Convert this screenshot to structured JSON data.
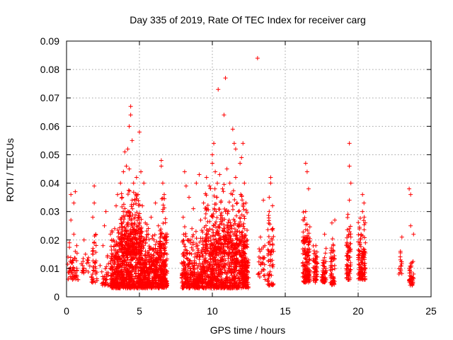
{
  "chart_data": {
    "type": "scatter",
    "title": "Day 335 of 2019, Rate Of TEC Index for receiver carg",
    "xlabel": "GPS time / hours",
    "ylabel": "ROTI / TECUs",
    "xlim": [
      0,
      25
    ],
    "ylim": [
      0,
      0.09
    ],
    "xticks": [
      0,
      5,
      10,
      15,
      20,
      25
    ],
    "xtick_labels": [
      "0",
      "5",
      "10",
      "15",
      "20",
      "25"
    ],
    "yticks": [
      0,
      0.01,
      0.02,
      0.03,
      0.04,
      0.05,
      0.06,
      0.07,
      0.08,
      0.09
    ],
    "ytick_labels": [
      "0",
      "0.01",
      "0.02",
      "0.03",
      "0.04",
      "0.05",
      "0.06",
      "0.07",
      "0.08",
      "0.09"
    ],
    "grid": true,
    "marker": "+",
    "color": "#ff0000",
    "series": [
      {
        "points": [
          [
            0.1,
            0.014
          ],
          [
            0.2,
            0.009
          ],
          [
            0.2,
            0.019
          ],
          [
            0.3,
            0.027
          ],
          [
            0.3,
            0.036
          ],
          [
            0.4,
            0.008
          ],
          [
            0.4,
            0.012
          ],
          [
            0.5,
            0.022
          ],
          [
            0.5,
            0.033
          ],
          [
            0.6,
            0.016
          ],
          [
            0.6,
            0.037
          ],
          [
            0.7,
            0.01
          ],
          [
            0.7,
            0.018
          ],
          [
            1.1,
            0.011
          ],
          [
            1.2,
            0.02
          ],
          [
            1.3,
            0.015
          ],
          [
            1.5,
            0.012
          ],
          [
            1.7,
            0.007
          ],
          [
            1.8,
            0.015
          ],
          [
            1.8,
            0.028
          ],
          [
            1.9,
            0.033
          ],
          [
            1.9,
            0.039
          ],
          [
            2.0,
            0.01
          ],
          [
            2.0,
            0.022
          ],
          [
            2.3,
            0.011
          ],
          [
            2.5,
            0.018
          ],
          [
            2.6,
            0.025
          ],
          [
            2.7,
            0.006
          ],
          [
            2.7,
            0.03
          ],
          [
            2.8,
            0.014
          ],
          [
            3.0,
            0.01
          ],
          [
            3.1,
            0.02
          ],
          [
            3.2,
            0.014
          ],
          [
            3.3,
            0.024
          ],
          [
            3.4,
            0.032
          ],
          [
            3.5,
            0.012
          ],
          [
            3.5,
            0.036
          ],
          [
            3.6,
            0.018
          ],
          [
            3.7,
            0.04
          ],
          [
            3.7,
            0.009
          ],
          [
            3.8,
            0.028
          ],
          [
            3.9,
            0.044
          ],
          [
            3.9,
            0.015
          ],
          [
            4.0,
            0.051
          ],
          [
            4.0,
            0.022
          ],
          [
            4.1,
            0.046
          ],
          [
            4.1,
            0.011
          ],
          [
            4.2,
            0.052
          ],
          [
            4.2,
            0.03
          ],
          [
            4.3,
            0.045
          ],
          [
            4.3,
            0.018
          ],
          [
            4.3,
            0.06
          ],
          [
            4.4,
            0.064
          ],
          [
            4.4,
            0.067
          ],
          [
            4.4,
            0.013
          ],
          [
            4.5,
            0.055
          ],
          [
            4.5,
            0.034
          ],
          [
            4.6,
            0.04
          ],
          [
            4.6,
            0.01
          ],
          [
            4.7,
            0.028
          ],
          [
            4.8,
            0.042
          ],
          [
            4.9,
            0.036
          ],
          [
            4.9,
            0.016
          ],
          [
            5.0,
            0.058
          ],
          [
            5.0,
            0.024
          ],
          [
            5.1,
            0.044
          ],
          [
            5.1,
            0.01
          ],
          [
            5.2,
            0.032
          ],
          [
            5.3,
            0.04
          ],
          [
            5.3,
            0.018
          ],
          [
            5.4,
            0.026
          ],
          [
            5.5,
            0.012
          ],
          [
            5.6,
            0.022
          ],
          [
            5.7,
            0.014
          ],
          [
            5.8,
            0.028
          ],
          [
            5.9,
            0.009
          ],
          [
            6.0,
            0.02
          ],
          [
            6.1,
            0.033
          ],
          [
            6.2,
            0.012
          ],
          [
            6.3,
            0.025
          ],
          [
            6.4,
            0.017
          ],
          [
            6.5,
            0.048
          ],
          [
            6.5,
            0.046
          ],
          [
            6.6,
            0.04
          ],
          [
            6.6,
            0.03
          ],
          [
            6.7,
            0.036
          ],
          [
            6.7,
            0.011
          ],
          [
            6.8,
            0.022
          ],
          [
            7.9,
            0.012
          ],
          [
            8.0,
            0.028
          ],
          [
            8.1,
            0.044
          ],
          [
            8.2,
            0.039
          ],
          [
            8.2,
            0.015
          ],
          [
            8.3,
            0.02
          ],
          [
            8.4,
            0.035
          ],
          [
            8.5,
            0.01
          ],
          [
            8.6,
            0.024
          ],
          [
            8.7,
            0.031
          ],
          [
            8.8,
            0.014
          ],
          [
            8.9,
            0.04
          ],
          [
            9.0,
            0.018
          ],
          [
            9.1,
            0.043
          ],
          [
            9.2,
            0.027
          ],
          [
            9.3,
            0.01
          ],
          [
            9.4,
            0.033
          ],
          [
            9.5,
            0.016
          ],
          [
            9.6,
            0.042
          ],
          [
            9.7,
            0.022
          ],
          [
            9.8,
            0.039
          ],
          [
            9.9,
            0.012
          ],
          [
            10.0,
            0.05
          ],
          [
            10.0,
            0.047
          ],
          [
            10.1,
            0.054
          ],
          [
            10.1,
            0.025
          ],
          [
            10.2,
            0.044
          ],
          [
            10.3,
            0.015
          ],
          [
            10.3,
            0.035
          ],
          [
            10.4,
            0.073
          ],
          [
            10.5,
            0.043
          ],
          [
            10.6,
            0.02
          ],
          [
            10.7,
            0.038
          ],
          [
            10.8,
            0.064
          ],
          [
            10.9,
            0.077
          ],
          [
            10.9,
            0.03
          ],
          [
            11.0,
            0.045
          ],
          [
            11.1,
            0.01
          ],
          [
            11.2,
            0.04
          ],
          [
            11.3,
            0.025
          ],
          [
            11.4,
            0.059
          ],
          [
            11.5,
            0.054
          ],
          [
            11.6,
            0.042
          ],
          [
            11.6,
            0.052
          ],
          [
            11.7,
            0.033
          ],
          [
            11.7,
            0.018
          ],
          [
            11.8,
            0.03
          ],
          [
            11.9,
            0.047
          ],
          [
            12.0,
            0.049
          ],
          [
            12.0,
            0.022
          ],
          [
            12.1,
            0.054
          ],
          [
            12.1,
            0.012
          ],
          [
            12.2,
            0.04
          ],
          [
            12.3,
            0.033
          ],
          [
            12.4,
            0.02
          ],
          [
            13.1,
            0.084
          ],
          [
            13.2,
            0.014
          ],
          [
            13.3,
            0.021
          ],
          [
            13.4,
            0.012
          ],
          [
            13.5,
            0.034
          ],
          [
            13.6,
            0.018
          ],
          [
            13.8,
            0.008
          ],
          [
            13.9,
            0.03
          ],
          [
            13.9,
            0.035
          ],
          [
            14.0,
            0.04
          ],
          [
            14.0,
            0.042
          ],
          [
            14.1,
            0.02
          ],
          [
            14.1,
            0.011
          ],
          [
            14.2,
            0.016
          ],
          [
            16.2,
            0.007
          ],
          [
            16.3,
            0.016
          ],
          [
            16.3,
            0.027
          ],
          [
            16.4,
            0.03
          ],
          [
            16.4,
            0.047
          ],
          [
            16.5,
            0.044
          ],
          [
            16.5,
            0.012
          ],
          [
            16.6,
            0.021
          ],
          [
            16.6,
            0.038
          ],
          [
            16.7,
            0.009
          ],
          [
            17.0,
            0.01
          ],
          [
            17.1,
            0.018
          ],
          [
            17.2,
            0.014
          ],
          [
            17.5,
            0.007
          ],
          [
            17.6,
            0.012
          ],
          [
            17.7,
            0.022
          ],
          [
            17.8,
            0.017
          ],
          [
            18.1,
            0.005
          ],
          [
            18.2,
            0.011
          ],
          [
            18.2,
            0.026
          ],
          [
            18.3,
            0.018
          ],
          [
            18.4,
            0.027
          ],
          [
            19.2,
            0.008
          ],
          [
            19.3,
            0.014
          ],
          [
            19.3,
            0.029
          ],
          [
            19.4,
            0.034
          ],
          [
            19.4,
            0.046
          ],
          [
            19.4,
            0.054
          ],
          [
            19.5,
            0.04
          ],
          [
            19.5,
            0.021
          ],
          [
            20.0,
            0.008
          ],
          [
            20.1,
            0.015
          ],
          [
            20.2,
            0.022
          ],
          [
            20.3,
            0.03
          ],
          [
            20.3,
            0.036
          ],
          [
            20.4,
            0.033
          ],
          [
            20.4,
            0.011
          ],
          [
            20.5,
            0.019
          ],
          [
            22.8,
            0.008
          ],
          [
            22.9,
            0.013
          ],
          [
            23.0,
            0.021
          ],
          [
            22.9,
            0.016
          ],
          [
            23.5,
            0.01
          ],
          [
            23.5,
            0.038
          ],
          [
            23.6,
            0.036
          ],
          [
            23.6,
            0.025
          ],
          [
            23.7,
            0.004
          ],
          [
            23.7,
            0.012
          ],
          [
            23.8,
            0.022
          ],
          [
            23.8,
            0.008
          ]
        ],
        "dense_bands": [
          {
            "x": [
              0.0,
              0.8
            ],
            "y": [
              0.006,
              0.02
            ],
            "n": 45
          },
          {
            "x": [
              1.0,
              1.6
            ],
            "y": [
              0.008,
              0.016
            ],
            "n": 18
          },
          {
            "x": [
              1.7,
              2.1
            ],
            "y": [
              0.005,
              0.025
            ],
            "n": 35
          },
          {
            "x": [
              2.4,
              2.9
            ],
            "y": [
              0.004,
              0.018
            ],
            "n": 30
          },
          {
            "x": [
              3.0,
              6.9
            ],
            "y": [
              0.003,
              0.026
            ],
            "n": 1100
          },
          {
            "x": [
              3.7,
              5.2
            ],
            "y": [
              0.015,
              0.04
            ],
            "n": 260
          },
          {
            "x": [
              6.4,
              6.8
            ],
            "y": [
              0.005,
              0.04
            ],
            "n": 70
          },
          {
            "x": [
              7.9,
              12.5
            ],
            "y": [
              0.003,
              0.025
            ],
            "n": 1000
          },
          {
            "x": [
              9.5,
              12.2
            ],
            "y": [
              0.015,
              0.042
            ],
            "n": 300
          },
          {
            "x": [
              12.0,
              12.4
            ],
            "y": [
              0.005,
              0.035
            ],
            "n": 60
          },
          {
            "x": [
              13.1,
              13.7
            ],
            "y": [
              0.006,
              0.022
            ],
            "n": 25
          },
          {
            "x": [
              13.8,
              14.2
            ],
            "y": [
              0.004,
              0.036
            ],
            "n": 60
          },
          {
            "x": [
              16.2,
              16.7
            ],
            "y": [
              0.005,
              0.032
            ],
            "n": 140
          },
          {
            "x": [
              16.9,
              17.2
            ],
            "y": [
              0.005,
              0.022
            ],
            "n": 50
          },
          {
            "x": [
              17.5,
              17.8
            ],
            "y": [
              0.005,
              0.02
            ],
            "n": 50
          },
          {
            "x": [
              18.1,
              18.4
            ],
            "y": [
              0.004,
              0.026
            ],
            "n": 55
          },
          {
            "x": [
              19.2,
              19.5
            ],
            "y": [
              0.006,
              0.03
            ],
            "n": 70
          },
          {
            "x": [
              20.0,
              20.5
            ],
            "y": [
              0.006,
              0.032
            ],
            "n": 110
          },
          {
            "x": [
              22.8,
              23.0
            ],
            "y": [
              0.008,
              0.019
            ],
            "n": 12
          },
          {
            "x": [
              23.5,
              23.8
            ],
            "y": [
              0.004,
              0.014
            ],
            "n": 35
          }
        ]
      }
    ]
  }
}
